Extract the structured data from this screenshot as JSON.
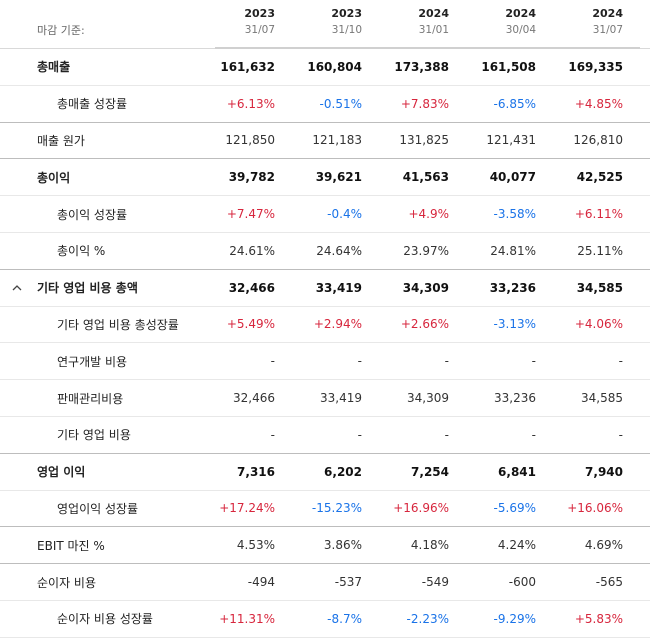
{
  "header": {
    "basis_label": "마감 기준:",
    "columns": [
      {
        "year": "2023",
        "date": "31/07"
      },
      {
        "year": "2023",
        "date": "31/10"
      },
      {
        "year": "2024",
        "date": "31/01"
      },
      {
        "year": "2024",
        "date": "30/04"
      },
      {
        "year": "2024",
        "date": "31/07"
      }
    ]
  },
  "rows": [
    {
      "label": "총매출",
      "values": [
        "161,632",
        "160,804",
        "173,388",
        "161,508",
        "169,335"
      ]
    },
    {
      "label": "총매출 성장률",
      "values": [
        "+6.13%",
        "-0.51%",
        "+7.83%",
        "-6.85%",
        "+4.85%"
      ]
    },
    {
      "label": "매출 원가",
      "values": [
        "121,850",
        "121,183",
        "131,825",
        "121,431",
        "126,810"
      ]
    },
    {
      "label": "총이익",
      "values": [
        "39,782",
        "39,621",
        "41,563",
        "40,077",
        "42,525"
      ]
    },
    {
      "label": "총이익 성장률",
      "values": [
        "+7.47%",
        "-0.4%",
        "+4.9%",
        "-3.58%",
        "+6.11%"
      ]
    },
    {
      "label": "총이익 %",
      "values": [
        "24.61%",
        "24.64%",
        "23.97%",
        "24.81%",
        "25.11%"
      ]
    },
    {
      "label": "기타 영업 비용 총액",
      "values": [
        "32,466",
        "33,419",
        "34,309",
        "33,236",
        "34,585"
      ]
    },
    {
      "label": "기타 영업 비용 총성장률",
      "values": [
        "+5.49%",
        "+2.94%",
        "+2.66%",
        "-3.13%",
        "+4.06%"
      ]
    },
    {
      "label": "연구개발 비용",
      "values": [
        "-",
        "-",
        "-",
        "-",
        "-"
      ]
    },
    {
      "label": "판매관리비용",
      "values": [
        "32,466",
        "33,419",
        "34,309",
        "33,236",
        "34,585"
      ]
    },
    {
      "label": "기타 영업 비용",
      "values": [
        "-",
        "-",
        "-",
        "-",
        "-"
      ]
    },
    {
      "label": "영업 이익",
      "values": [
        "7,316",
        "6,202",
        "7,254",
        "6,841",
        "7,940"
      ]
    },
    {
      "label": "영업이익 성장률",
      "values": [
        "+17.24%",
        "-15.23%",
        "+16.96%",
        "-5.69%",
        "+16.06%"
      ]
    },
    {
      "label": "EBIT 마진 %",
      "values": [
        "4.53%",
        "3.86%",
        "4.18%",
        "4.24%",
        "4.69%"
      ]
    },
    {
      "label": "순이자 비용",
      "values": [
        "-494",
        "-537",
        "-549",
        "-600",
        "-565"
      ]
    },
    {
      "label": "순이자 비용 성장률",
      "values": [
        "+11.31%",
        "-8.7%",
        "-2.23%",
        "-9.29%",
        "+5.83%"
      ]
    }
  ]
}
